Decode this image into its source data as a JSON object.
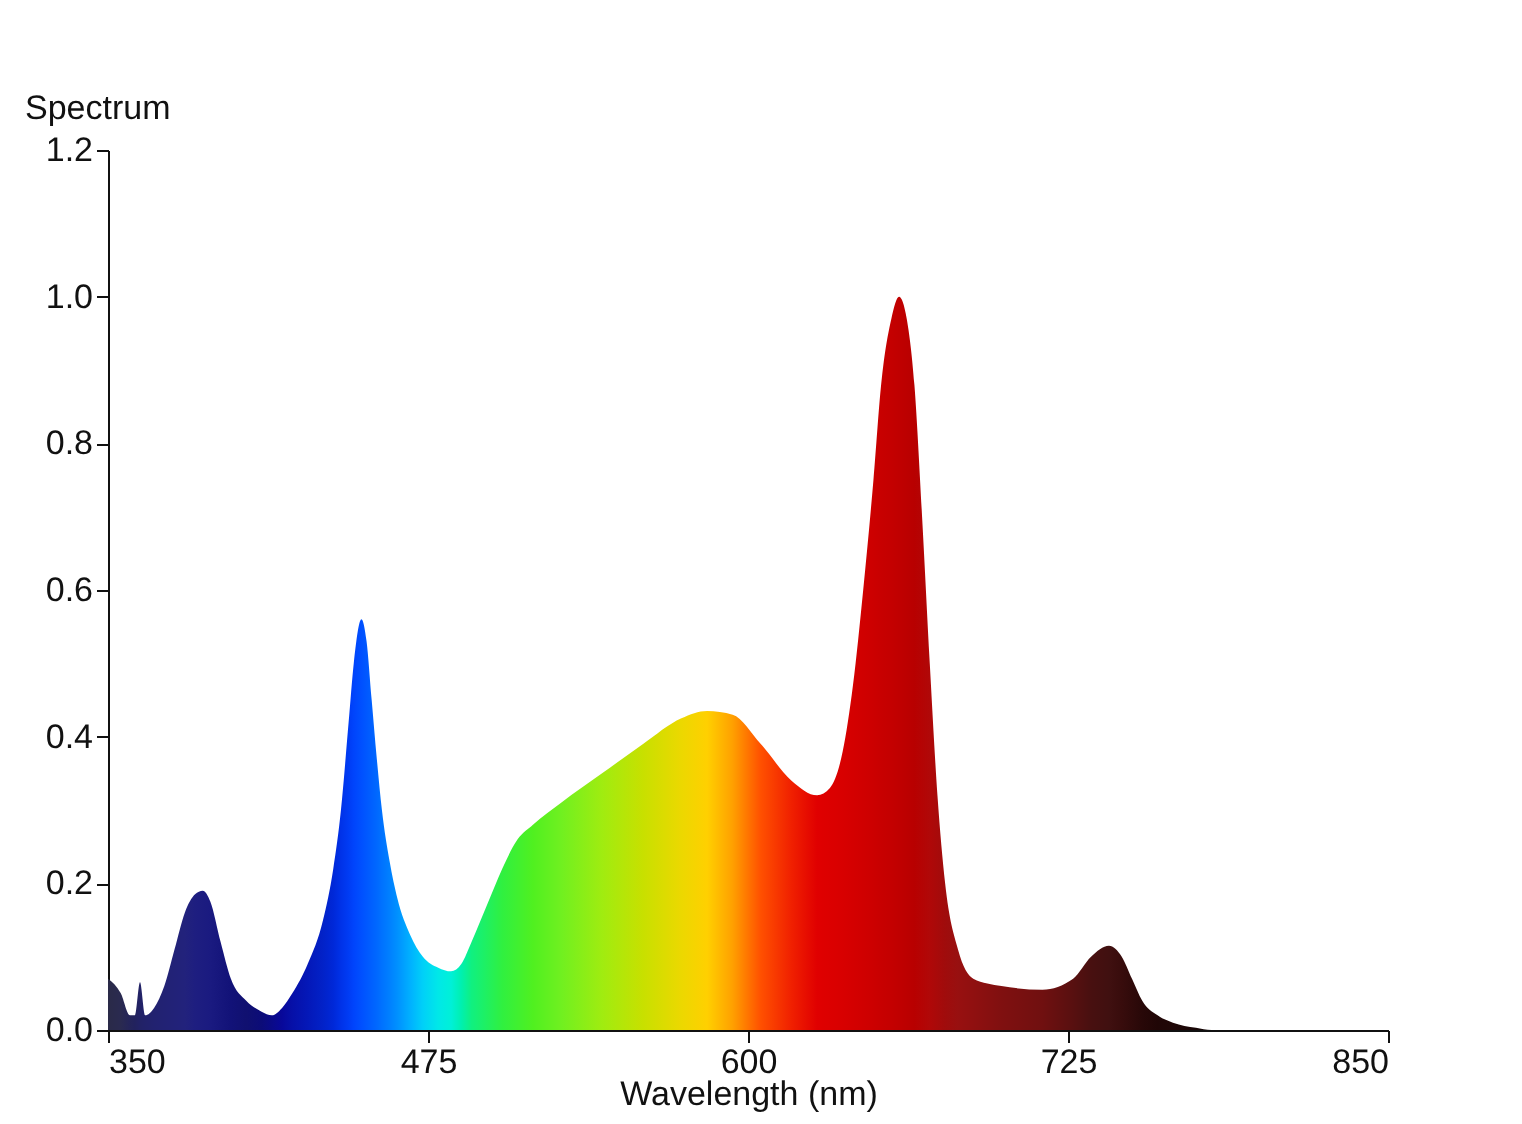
{
  "chart_data": {
    "type": "area",
    "xlabel": "Wavelength (nm)",
    "ylabel": "Spectrum",
    "xlim": [
      350,
      850
    ],
    "xticks": [
      350,
      475,
      600,
      725,
      850
    ],
    "ylim": [
      0,
      1.2
    ],
    "yticks": [
      {
        "value": 0,
        "label": "0.0"
      },
      0.2,
      0.4,
      0.6,
      0.8,
      {
        "value": 1,
        "label": "1.0"
      },
      1.2
    ],
    "grid": false,
    "series": [
      {
        "x": [
          350,
          355,
          358.6,
          360.5,
          362.5,
          364.5,
          368,
          372,
          376,
          380,
          384,
          387,
          390,
          394,
          398,
          404,
          410,
          414,
          418,
          422,
          428,
          434,
          438,
          441,
          444,
          446,
          449,
          451,
          453,
          455,
          457,
          460,
          463,
          468,
          473,
          479,
          484,
          488,
          492,
          498,
          504,
          510,
          516,
          527,
          543,
          559,
          574,
          584,
          594,
          605,
          617,
          627,
          632,
          637,
          641,
          645,
          649,
          652,
          656,
          659,
          662,
          665,
          668,
          671,
          674,
          677,
          682,
          688,
          699,
          715,
          727,
          734,
          741,
          746,
          750,
          754,
          760,
          766,
          775,
          781,
          800,
          850
        ],
        "values": [
          0.07,
          0.05,
          0.02,
          0.02,
          0.065,
          0.02,
          0.03,
          0.06,
          0.11,
          0.16,
          0.185,
          0.19,
          0.175,
          0.12,
          0.07,
          0.04,
          0.025,
          0.02,
          0.03,
          0.05,
          0.09,
          0.15,
          0.22,
          0.3,
          0.42,
          0.5,
          0.56,
          0.53,
          0.45,
          0.37,
          0.3,
          0.23,
          0.18,
          0.13,
          0.1,
          0.085,
          0.08,
          0.09,
          0.12,
          0.17,
          0.22,
          0.26,
          0.28,
          0.31,
          0.35,
          0.39,
          0.425,
          0.435,
          0.43,
          0.39,
          0.34,
          0.32,
          0.33,
          0.38,
          0.47,
          0.6,
          0.75,
          0.88,
          0.97,
          1.0,
          0.97,
          0.88,
          0.7,
          0.5,
          0.32,
          0.2,
          0.11,
          0.07,
          0.06,
          0.055,
          0.07,
          0.1,
          0.115,
          0.1,
          0.07,
          0.04,
          0.02,
          0.01,
          0.003,
          0.0,
          0.0,
          0.0
        ],
        "colors": [
          "#2a2a48",
          "#2a2a50",
          "#24245a",
          "#22225e",
          "#222266",
          "#22226a",
          "#222270",
          "#222274",
          "#222278",
          "#22227c",
          "#1e1e80",
          "#1c1c80",
          "#1a1a80",
          "#16167c",
          "#121278",
          "#101070",
          "#0c0c78",
          "#0a0a88",
          "#08089a",
          "#0610a8",
          "#0418b8",
          "#0222c8",
          "#0028d8",
          "#0032e8",
          "#003cf4",
          "#0044fc",
          "#0050ff",
          "#0058ff",
          "#0060ff",
          "#0068ff",
          "#0072ff",
          "#0080ff",
          "#0090ff",
          "#00b0ff",
          "#00d0f8",
          "#00e8e8",
          "#00f0d8",
          "#00f0b0",
          "#10f080",
          "#20f060",
          "#30f040",
          "#40f030",
          "#50f020",
          "#70f020",
          "#a0ec10",
          "#c8e000",
          "#ecd800",
          "#ffd000",
          "#ffa000",
          "#ff5000",
          "#f02000",
          "#e00000",
          "#dc0000",
          "#d80000",
          "#d40000",
          "#d00000",
          "#cc0000",
          "#c80000",
          "#c40000",
          "#c00000",
          "#bc0000",
          "#b80000",
          "#b40404",
          "#b00808",
          "#a80a0a",
          "#a00c0c",
          "#981010",
          "#901010",
          "#801010",
          "#701010",
          "#581010",
          "#481010",
          "#401010",
          "#380c0c",
          "#300a0a",
          "#280808",
          "#200606",
          "#200808",
          "#180606",
          "#100404",
          "#080202",
          "#000000"
        ]
      }
    ]
  }
}
